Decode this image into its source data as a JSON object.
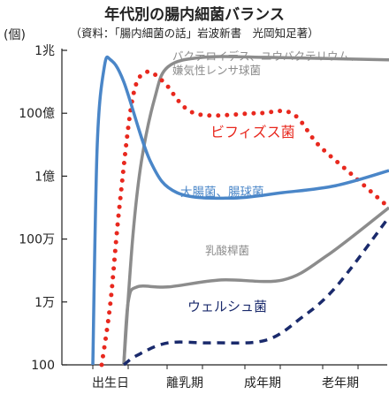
{
  "header": {
    "title": "年代別の腸内細菌バランス",
    "subtitle": "（資料：「腸内細菌の話」岩波新書　光岡知足著）"
  },
  "chart_data": {
    "type": "line",
    "title": "年代別の腸内細菌バランス",
    "subtitle": "（資料：「腸内細菌の話」岩波新書　光岡知足著）",
    "ylabel": "(個)",
    "xlabel": "",
    "y_scale": "log",
    "ylim": [
      100,
      1000000000000
    ],
    "y_ticks": [
      {
        "value": 100,
        "label": "100"
      },
      {
        "value": 10000,
        "label": "1万"
      },
      {
        "value": 1000000,
        "label": "100万"
      },
      {
        "value": 100000000,
        "label": "1億"
      },
      {
        "value": 10000000000,
        "label": "100億"
      },
      {
        "value": 1000000000000,
        "label": "1兆"
      }
    ],
    "x_categories": [
      "出生日",
      "離乳期",
      "成年期",
      "老年期"
    ],
    "grid": false,
    "legend": "none",
    "series": [
      {
        "name": "バクテロイデス、ユウバクテリウム、嫌気性レンサ球菌",
        "label_lines": [
          "バクテロイデス、ユウバクテリウム、",
          "嫌気性レンサ球菌"
        ],
        "color": "#8c8c8c",
        "style": "solid",
        "points": [
          [
            140,
            100
          ],
          [
            150,
            1000000
          ],
          [
            160,
            300000000
          ],
          [
            175,
            30000000000
          ],
          [
            190,
            300000000000
          ],
          [
            230,
            600000000000
          ],
          [
            300,
            600000000000
          ],
          [
            440,
            500000000000
          ]
        ]
      },
      {
        "name": "ビフィズス菌",
        "label_lines": [
          "ビフィズス菌"
        ],
        "color": "#e8281e",
        "style": "dotted",
        "points": [
          [
            115,
            100
          ],
          [
            125,
            10000
          ],
          [
            135,
            10000000
          ],
          [
            150,
            30000000000
          ],
          [
            165,
            200000000000
          ],
          [
            185,
            100000000000
          ],
          [
            220,
            10000000000
          ],
          [
            290,
            10000000000
          ],
          [
            330,
            10000000000
          ],
          [
            360,
            1000000000
          ],
          [
            400,
            100000000
          ],
          [
            440,
            10000000
          ]
        ]
      },
      {
        "name": "大腸菌、腸球菌",
        "label_lines": [
          "大腸菌、腸球菌"
        ],
        "color": "#4a86c8",
        "style": "solid",
        "points": [
          [
            105,
            100
          ],
          [
            110,
            1000000000
          ],
          [
            118,
            300000000000
          ],
          [
            125,
            500000000000
          ],
          [
            140,
            100000000000
          ],
          [
            170,
            300000000
          ],
          [
            200,
            30000000
          ],
          [
            260,
            20000000
          ],
          [
            320,
            30000000
          ],
          [
            380,
            50000000
          ],
          [
            440,
            150000000
          ]
        ]
      },
      {
        "name": "乳酸桿菌",
        "label_lines": [
          "乳酸桿菌"
        ],
        "color": "#8c8c8c",
        "style": "solid",
        "points": [
          [
            140,
            100
          ],
          [
            145,
            10000
          ],
          [
            155,
            30000
          ],
          [
            190,
            30000
          ],
          [
            250,
            50000
          ],
          [
            320,
            50000
          ],
          [
            370,
            300000
          ],
          [
            440,
            10000000
          ]
        ]
      },
      {
        "name": "ウェルシュ菌",
        "label_lines": [
          "ウェルシュ菌"
        ],
        "color": "#1a2a6c",
        "style": "dashed",
        "points": [
          [
            140,
            100
          ],
          [
            155,
            200
          ],
          [
            190,
            500
          ],
          [
            240,
            500
          ],
          [
            300,
            600
          ],
          [
            340,
            3000
          ],
          [
            380,
            30000
          ],
          [
            440,
            5000000
          ]
        ]
      }
    ]
  }
}
